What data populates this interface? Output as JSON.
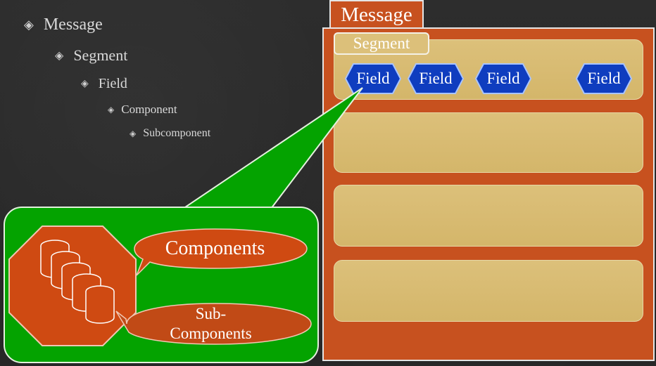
{
  "outline": {
    "items": [
      {
        "label": "Message"
      },
      {
        "label": "Segment"
      },
      {
        "label": "Field"
      },
      {
        "label": "Component"
      },
      {
        "label": "Subcomponent"
      }
    ]
  },
  "message_diagram": {
    "message_label": "Message",
    "segment_label": "Segment",
    "field_labels": [
      "Field",
      "Field",
      "Field",
      "Field"
    ]
  },
  "callout": {
    "components_label": "Components",
    "subcomponents_line1": "Sub-",
    "subcomponents_line2": "Components"
  },
  "colors": {
    "background": "#2b2b2b",
    "message_orange": "#c7511f",
    "segment_tan": "#dcc07a",
    "field_blue": "#0f3dbf",
    "callout_green": "#04a300",
    "component_orange": "#cf4a12"
  }
}
